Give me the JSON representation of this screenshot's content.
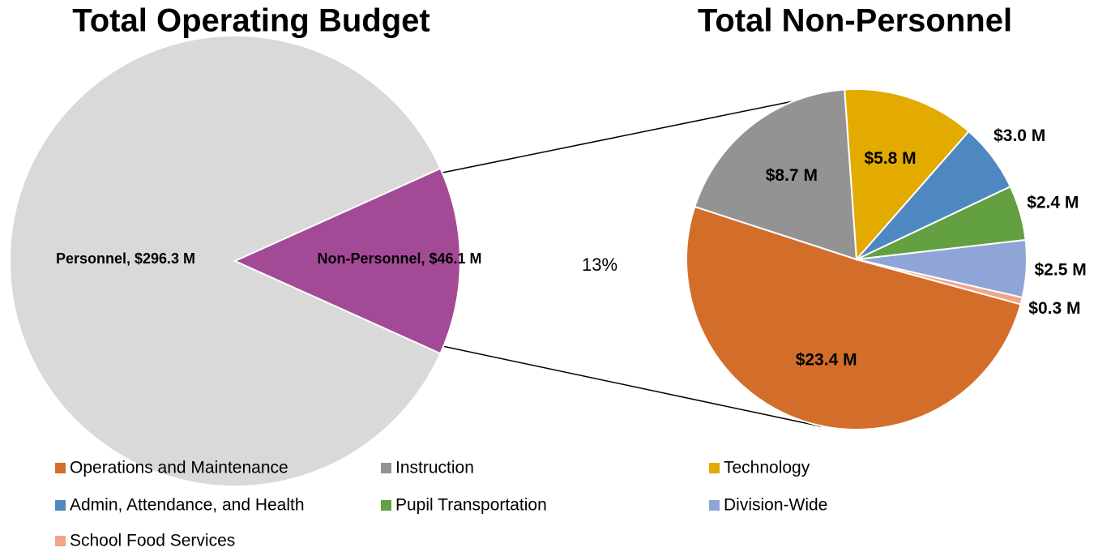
{
  "chart_data": [
    {
      "type": "pie",
      "title": "Total Operating Budget",
      "categories": [
        "Personnel",
        "Non-Personnel"
      ],
      "values": [
        296.3,
        46.1
      ],
      "value_labels": [
        "Personnel, $296.3 M",
        "Non-Personnel, $46.1 M"
      ],
      "colors": [
        "#d9d9d9",
        "#a34a96"
      ],
      "annotation": "13%"
    },
    {
      "type": "pie",
      "title": "Total Non-Personnel",
      "categories": [
        "Operations and Maintenance",
        "Instruction",
        "Technology",
        "Admin, Attendance, and  Health",
        "Pupil Transportation",
        "Division-Wide",
        "School Food Services"
      ],
      "values": [
        23.4,
        8.7,
        5.8,
        3.0,
        2.4,
        2.5,
        0.3
      ],
      "value_labels": [
        "$23.4 M",
        "$8.7 M",
        "$5.8 M",
        "$3.0 M",
        "$2.4 M",
        "$2.5 M",
        "$0.3 M"
      ],
      "colors": [
        "#d36e2a",
        "#939393",
        "#e3aa00",
        "#4e88c0",
        "#62a041",
        "#8fa5d7",
        "#f2a48a"
      ],
      "legend": "bottom"
    }
  ]
}
